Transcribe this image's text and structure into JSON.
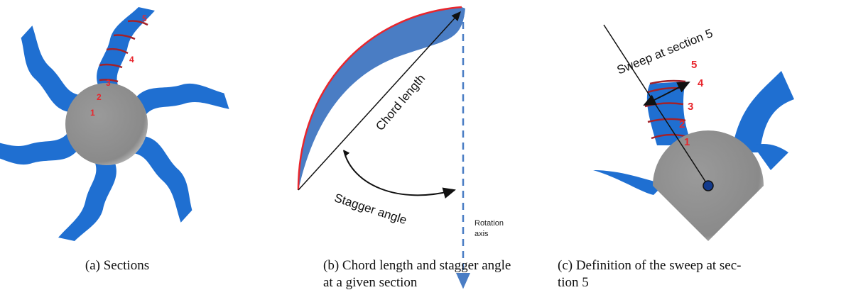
{
  "panels": [
    {
      "section_labels": [
        "1",
        "2",
        "3",
        "4",
        "5"
      ],
      "caption": [
        "(a) Sections"
      ]
    },
    {
      "chord_label": "Chord length",
      "stagger_label": "Stagger angle",
      "axis_label": [
        "Rotation",
        "axis"
      ],
      "caption": [
        "(b) Chord length and stagger angle",
        "at a given section"
      ]
    },
    {
      "sweep_label": "Sweep at section 5",
      "section_labels": [
        "1",
        "2",
        "3",
        "4",
        "5"
      ],
      "caption": [
        "(c) Definition of the sweep at sec-",
        "tion 5"
      ]
    }
  ]
}
